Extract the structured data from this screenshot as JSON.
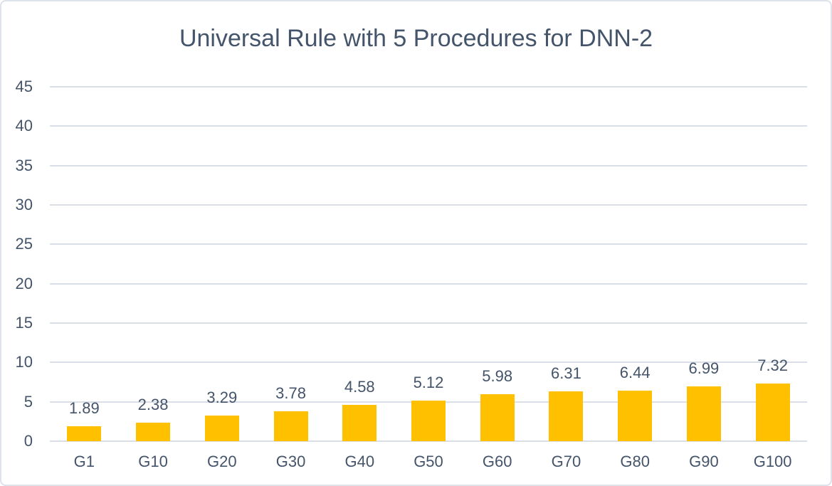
{
  "window": {
    "background": "#FFFFFF",
    "border_color": "#DEE2EA"
  },
  "chart_data": {
    "type": "bar",
    "title": "Universal Rule with 5 Procedures for DNN-2",
    "categories": [
      "G1",
      "G10",
      "G20",
      "G30",
      "G40",
      "G50",
      "G60",
      "G70",
      "G80",
      "G90",
      "G100"
    ],
    "values": [
      1.89,
      2.38,
      3.29,
      3.78,
      4.58,
      5.12,
      5.98,
      6.31,
      6.44,
      6.99,
      7.32
    ],
    "data_labels": [
      "1.89",
      "2.38",
      "3.29",
      "3.78",
      "4.58",
      "5.12",
      "5.98",
      "6.31",
      "6.44",
      "6.99",
      "7.32"
    ],
    "xlabel": "",
    "ylabel": "",
    "ylim": [
      0,
      45
    ],
    "yticks": [
      0,
      5,
      10,
      15,
      20,
      25,
      30,
      35,
      40,
      45
    ],
    "grid": true,
    "legend": false,
    "bar_color": "#FFC000",
    "text_color": "#44546A",
    "gridline_color": "#D9DEE7"
  }
}
